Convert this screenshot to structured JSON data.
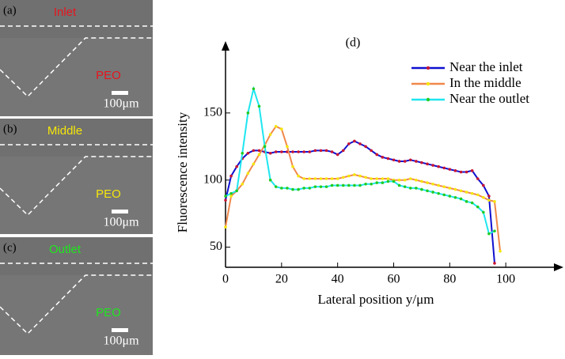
{
  "panels": [
    {
      "label": "(a)",
      "name": "Inlet",
      "fluid": "PEO",
      "scale": "100μm",
      "color": "#e8141e"
    },
    {
      "label": "(b)",
      "name": "Middle",
      "fluid": "PEO",
      "scale": "100μm",
      "color": "#f5e60a"
    },
    {
      "label": "(c)",
      "name": "Outlet",
      "fluid": "PEO",
      "scale": "100μm",
      "color": "#1ee61e"
    }
  ],
  "chart_data": {
    "type": "line",
    "title": "(d)",
    "x_label": "Lateral position y/μm",
    "y_label": "Fluorescence intensity",
    "xlim": [
      0,
      120
    ],
    "xticks": [
      0,
      20,
      40,
      60,
      80,
      100
    ],
    "ylim": [
      35,
      200
    ],
    "yticks": [
      50,
      100,
      150
    ],
    "legend": "upper right",
    "series": [
      {
        "name": "Near the inlet",
        "color": "#1010d0",
        "marker_color": "#c81432",
        "x": [
          0,
          2,
          4,
          6,
          8,
          10,
          12,
          14,
          16,
          18,
          20,
          22,
          24,
          26,
          28,
          30,
          32,
          34,
          36,
          38,
          40,
          42,
          44,
          46,
          48,
          50,
          52,
          54,
          56,
          58,
          60,
          62,
          64,
          66,
          68,
          70,
          72,
          74,
          76,
          78,
          80,
          82,
          84,
          86,
          88,
          90,
          92,
          94,
          96
        ],
        "values": [
          85,
          103,
          110,
          116,
          120,
          122,
          122,
          121,
          120,
          121,
          121,
          121,
          121,
          121,
          121,
          121,
          122,
          122,
          122,
          121,
          119,
          122,
          127,
          129,
          127,
          125,
          122,
          119,
          117,
          116,
          115,
          114,
          114,
          115,
          114,
          113,
          112,
          111,
          110,
          109,
          108,
          107,
          106,
          106,
          107,
          101,
          96,
          88,
          38
        ]
      },
      {
        "name": "In the middle",
        "color": "#f0884a",
        "marker_color": "#f5e60a",
        "x": [
          0,
          2,
          4,
          6,
          8,
          10,
          12,
          14,
          16,
          18,
          20,
          22,
          24,
          26,
          28,
          30,
          32,
          34,
          36,
          38,
          40,
          42,
          44,
          46,
          48,
          50,
          52,
          54,
          56,
          58,
          60,
          62,
          64,
          66,
          68,
          70,
          72,
          74,
          76,
          78,
          80,
          82,
          84,
          86,
          88,
          90,
          92,
          94,
          96,
          98
        ],
        "values": [
          65,
          88,
          92,
          97,
          105,
          112,
          119,
          126,
          134,
          140,
          138,
          125,
          110,
          103,
          101,
          101,
          101,
          101,
          101,
          101,
          101,
          102,
          103,
          104,
          103,
          102,
          101,
          101,
          101,
          101,
          100,
          100,
          100,
          101,
          100,
          99,
          98,
          97,
          96,
          95,
          94,
          93,
          92,
          91,
          90,
          89,
          87,
          85,
          84,
          47
        ]
      },
      {
        "name": "Near the outlet",
        "color": "#1ee6f0",
        "marker_color": "#22cc22",
        "x": [
          0,
          2,
          4,
          6,
          8,
          10,
          12,
          14,
          16,
          18,
          20,
          22,
          24,
          26,
          28,
          30,
          32,
          34,
          36,
          38,
          40,
          42,
          44,
          46,
          48,
          50,
          52,
          54,
          56,
          58,
          60,
          62,
          64,
          66,
          68,
          70,
          72,
          74,
          76,
          78,
          80,
          82,
          84,
          86,
          88,
          90,
          92,
          94,
          96
        ],
        "values": [
          88,
          90,
          92,
          120,
          150,
          168,
          155,
          125,
          100,
          95,
          94,
          94,
          93,
          93,
          94,
          94,
          95,
          95,
          95,
          96,
          96,
          96,
          96,
          96,
          96,
          97,
          97,
          98,
          98,
          99,
          99,
          96,
          95,
          94,
          94,
          93,
          92,
          91,
          90,
          89,
          88,
          87,
          86,
          84,
          83,
          80,
          76,
          60,
          62
        ]
      }
    ]
  }
}
